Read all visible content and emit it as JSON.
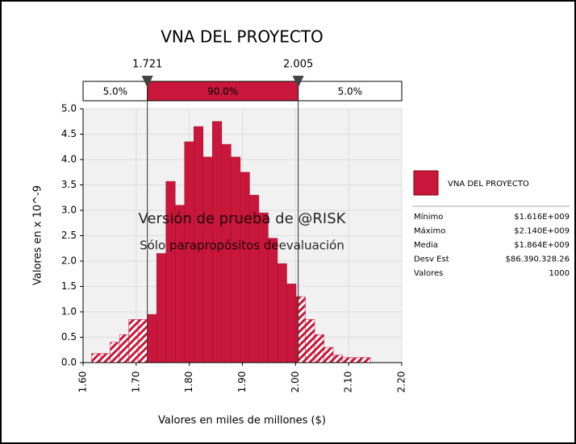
{
  "chart_data": {
    "type": "histogram",
    "title": "VNA DEL PROYECTO",
    "xlabel": "Valores en miles de millones ($)",
    "ylabel": "Valores en x 10^-9",
    "watermark": [
      "Versión de prueba de @RISK",
      "Sólo parapropósitos deevaluación"
    ],
    "color": "#c8173a",
    "grid": true,
    "bins": [
      1.616,
      1.6335,
      1.651,
      1.6685,
      1.686,
      1.7035,
      1.721,
      1.7385,
      1.756,
      1.7735,
      1.791,
      1.8085,
      1.826,
      1.8435,
      1.861,
      1.8785,
      1.896,
      1.9135,
      1.931,
      1.9485,
      1.966,
      1.9835,
      2.001,
      2.0185,
      2.036,
      2.0535,
      2.071,
      2.0885,
      2.106,
      2.1235,
      2.141
    ],
    "values": [
      0.18,
      0.18,
      0.4,
      0.55,
      0.85,
      0.85,
      0.95,
      2.15,
      3.57,
      3.1,
      4.35,
      4.65,
      4.05,
      4.75,
      4.3,
      4.05,
      3.75,
      3.3,
      2.95,
      2.45,
      1.95,
      1.55,
      1.3,
      0.85,
      0.55,
      0.3,
      0.15,
      0.1,
      0.1,
      0.1
    ],
    "xlim": [
      1.6,
      2.2
    ],
    "xticks": [
      {
        "value": 1.6,
        "label": "1.60"
      },
      {
        "value": 1.7,
        "label": "1.70"
      },
      {
        "value": 1.8,
        "label": "1.80"
      },
      {
        "value": 1.9,
        "label": "1.90"
      },
      {
        "value": 2.0,
        "label": "2.00"
      },
      {
        "value": 2.1,
        "label": "2.10"
      },
      {
        "value": 2.2,
        "label": "2.20"
      }
    ],
    "ylim": [
      0,
      5
    ],
    "yticks": [
      {
        "value": 0,
        "label": "0.0"
      },
      {
        "value": 0.5,
        "label": "0.5"
      },
      {
        "value": 1,
        "label": "1.0"
      },
      {
        "value": 1.5,
        "label": "1.5"
      },
      {
        "value": 2,
        "label": "2.0"
      },
      {
        "value": 2.5,
        "label": "2.5"
      },
      {
        "value": 3,
        "label": "3.0"
      },
      {
        "value": 3.5,
        "label": "3.5"
      },
      {
        "value": 4,
        "label": "4.0"
      },
      {
        "value": 4.5,
        "label": "4.5"
      },
      {
        "value": 5,
        "label": "5.0"
      }
    ],
    "delimiters": [
      1.721,
      2.005
    ],
    "bands": {
      "values": [
        5,
        90,
        5
      ],
      "value_labels": [
        "5.0%",
        "90.0%",
        "5.0%"
      ]
    },
    "legend": "VNA DEL PROYECTO",
    "stats": [
      {
        "label": "Mínimo",
        "value": "$1.616E+009"
      },
      {
        "label": "Máximo",
        "value": "$2.140E+009"
      },
      {
        "label": "Media",
        "value": "$1.864E+009"
      },
      {
        "label": "Desv Est",
        "value": "$86.390.328.26"
      },
      {
        "label": "Valores",
        "value": "1000"
      }
    ]
  }
}
